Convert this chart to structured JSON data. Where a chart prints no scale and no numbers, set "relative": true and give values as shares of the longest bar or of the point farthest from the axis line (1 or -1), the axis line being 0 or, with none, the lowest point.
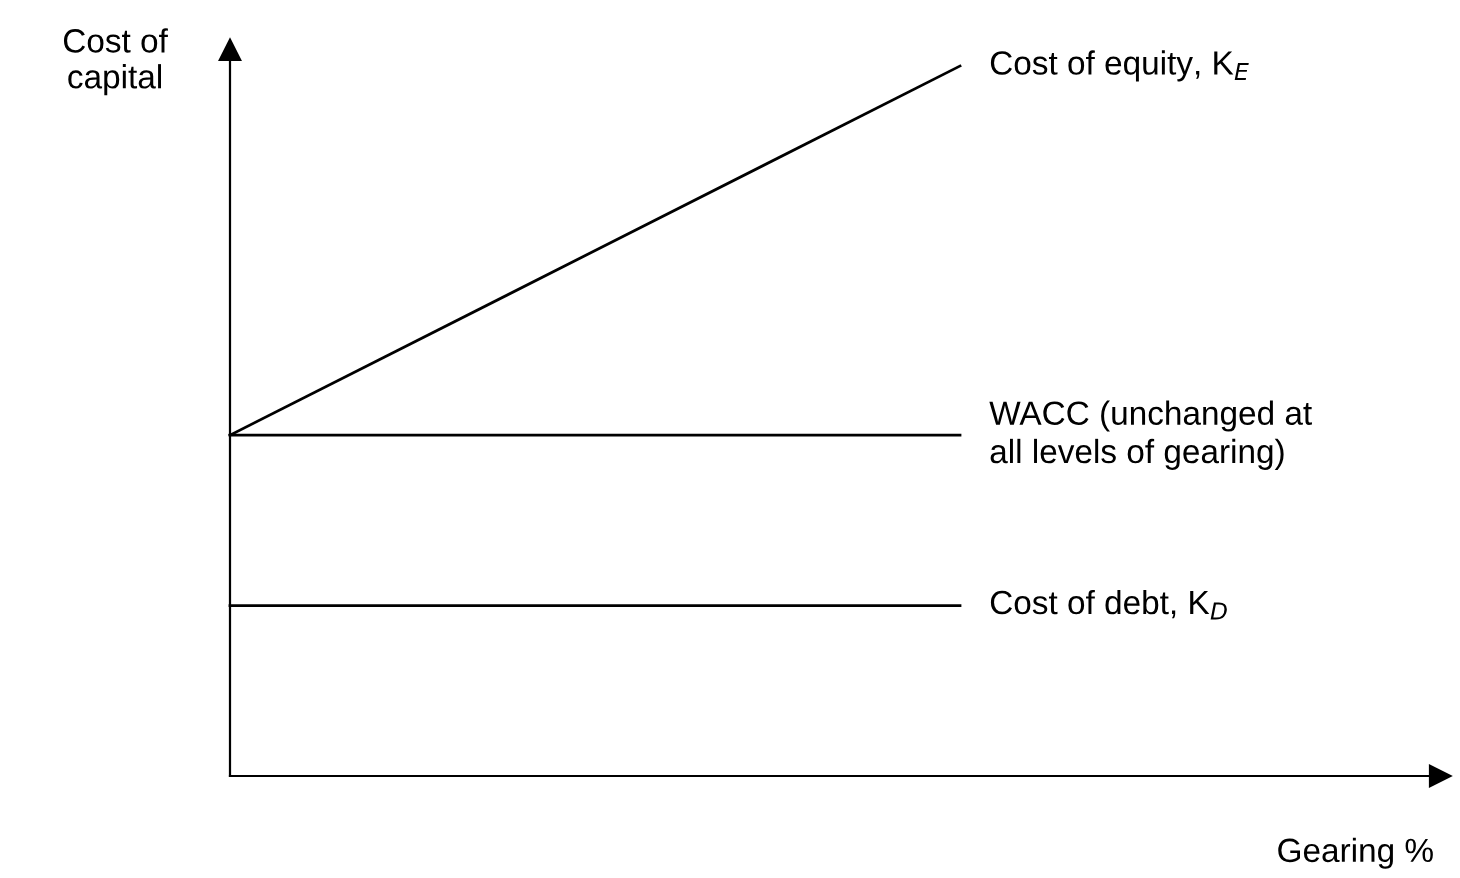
{
  "chart_data": {
    "type": "line",
    "relative": true,
    "categories": [
      null,
      null
    ],
    "xlabel": "Gearing %",
    "ylabel": "Cost of\ncapital",
    "legend": false,
    "grid": false,
    "marker": "none",
    "line_style": "solid",
    "series": [
      {
        "name": "Cost of equity, K$_{E}$",
        "color": "#000000",
        "values": [
          0.48,
          1
        ]
      },
      {
        "name": "WACC (unchanged at\nall levels of gearing)",
        "color": "#000000",
        "values": [
          0.48,
          0.48
        ]
      },
      {
        "name": "Cost of debt, K$_{D}$",
        "color": "#000000",
        "values": [
          0.24,
          0.24
        ]
      }
    ]
  }
}
